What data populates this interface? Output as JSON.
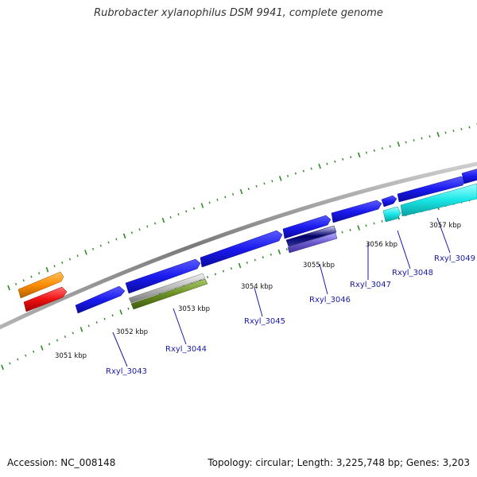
{
  "title": "Rubrobacter xylanophilus DSM 9941, complete genome",
  "footer": {
    "accession": "Accession: NC_008148",
    "summary": "Topology: circular; Length: 3,225,748 bp; Genes: 3,203"
  },
  "colors": {
    "backbone": "#8a8a8a",
    "forward_gene": "#1a1aee",
    "cyan_gene": "#19e6e6",
    "orange_gene": "#ff8c00",
    "red_gene": "#ee1111",
    "olive_gene": "#6b8e23",
    "gray_gene": "#b8b8b8",
    "purple_gene": "#6a5acd",
    "navy_gene": "#000066",
    "tick": "#2e8b22",
    "label_line": "#1a1aa6"
  },
  "kbp_labels": [
    "3051 kbp",
    "3052 kbp",
    "3053 kbp",
    "3054 kbp",
    "3055 kbp",
    "3056 kbp",
    "3057 kbp"
  ],
  "gene_labels": [
    "Rxyl_3043",
    "Rxyl_3044",
    "Rxyl_3045",
    "Rxyl_3046",
    "Rxyl_3047",
    "Rxyl_3048",
    "Rxyl_3049"
  ]
}
